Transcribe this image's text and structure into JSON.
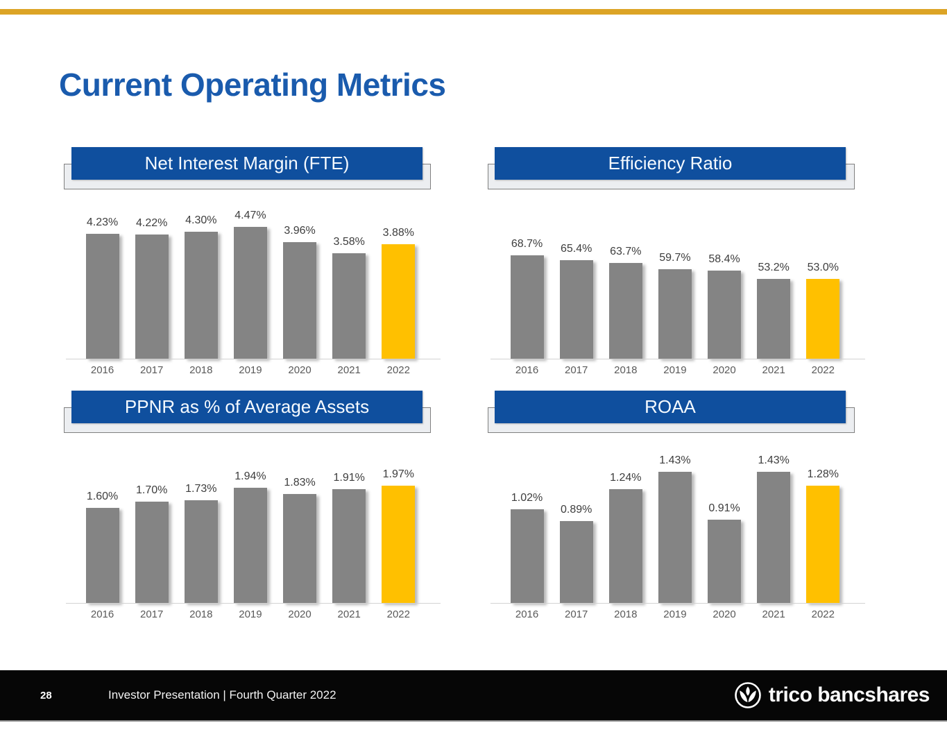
{
  "page": {
    "title": "Current Operating Metrics"
  },
  "footer": {
    "page_number": "28",
    "caption": "Investor Presentation | Fourth Quarter 2022",
    "logo_text": "trico bancshares"
  },
  "colors": {
    "accent_gold": "#FFC000",
    "top_rule_gold": "#DCA426",
    "header_blue": "#0F4F9E",
    "title_blue": "#1A5BAD",
    "bar_gray": "#848484"
  },
  "chart_data": [
    {
      "type": "bar",
      "title": "Net Interest Margin (FTE)",
      "categories": [
        "2016",
        "2017",
        "2018",
        "2019",
        "2020",
        "2021",
        "2022"
      ],
      "values": [
        4.23,
        4.22,
        4.3,
        4.47,
        3.96,
        3.58,
        3.88
      ],
      "labels": [
        "4.23%",
        "4.22%",
        "4.30%",
        "4.47%",
        "3.96%",
        "3.58%",
        "3.88%"
      ],
      "highlight_index": 6,
      "ylim": [
        0,
        4.47
      ],
      "grid": false,
      "legend": "none",
      "bar_color": "#848484",
      "highlight_color": "#FFC000"
    },
    {
      "type": "bar",
      "title": "Efficiency Ratio",
      "categories": [
        "2016",
        "2017",
        "2018",
        "2019",
        "2020",
        "2021",
        "2022"
      ],
      "values": [
        68.7,
        65.4,
        63.7,
        59.7,
        58.4,
        53.2,
        53.0
      ],
      "labels": [
        "68.7%",
        "65.4%",
        "63.7%",
        "59.7%",
        "58.4%",
        "53.2%",
        "53.0%"
      ],
      "highlight_index": 6,
      "ylim": [
        0,
        68.7
      ],
      "grid": false,
      "legend": "none",
      "bar_color": "#848484",
      "highlight_color": "#FFC000"
    },
    {
      "type": "bar",
      "title": "PPNR as % of Average Assets",
      "categories": [
        "2016",
        "2017",
        "2018",
        "2019",
        "2020",
        "2021",
        "2022"
      ],
      "values": [
        1.6,
        1.7,
        1.73,
        1.94,
        1.83,
        1.91,
        1.97
      ],
      "labels": [
        "1.60%",
        "1.70%",
        "1.73%",
        "1.94%",
        "1.83%",
        "1.91%",
        "1.97%"
      ],
      "highlight_index": 6,
      "ylim": [
        0,
        1.97
      ],
      "grid": false,
      "legend": "none",
      "bar_color": "#848484",
      "highlight_color": "#FFC000"
    },
    {
      "type": "bar",
      "title": "ROAA",
      "categories": [
        "2016",
        "2017",
        "2018",
        "2019",
        "2020",
        "2021",
        "2022"
      ],
      "values": [
        1.02,
        0.89,
        1.24,
        1.43,
        0.91,
        1.43,
        1.28
      ],
      "labels": [
        "1.02%",
        "0.89%",
        "1.24%",
        "1.43%",
        "0.91%",
        "1.43%",
        "1.28%"
      ],
      "highlight_index": 6,
      "ylim": [
        0,
        1.43
      ],
      "grid": false,
      "legend": "none",
      "bar_color": "#848484",
      "highlight_color": "#FFC000"
    }
  ]
}
